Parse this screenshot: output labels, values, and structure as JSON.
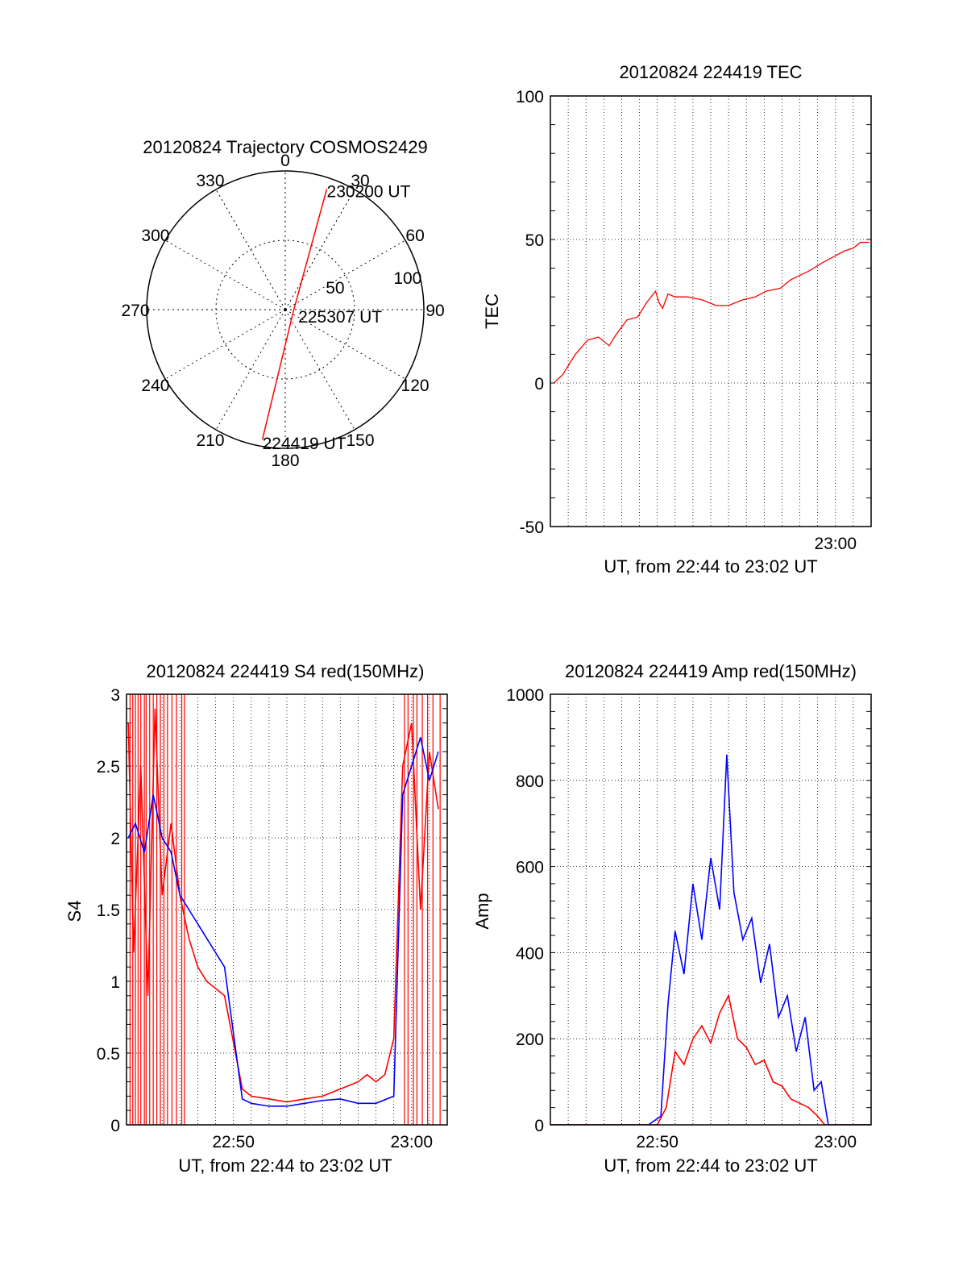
{
  "chart_data": [
    {
      "type": "polar",
      "title": "20120824 Trajectory COSMOS2429",
      "angle_labels": [
        "0",
        "30",
        "60",
        "90",
        "120",
        "150",
        "180",
        "210",
        "240",
        "270",
        "300",
        "330"
      ],
      "radial_labels": [
        "50",
        "100"
      ],
      "rlim": [
        0,
        100
      ],
      "series": [
        {
          "color": "#ff0000",
          "points": [
            {
              "az": 190,
              "r": 95,
              "label": "224419 UT"
            },
            {
              "az": 100,
              "r": 6,
              "label": "225307 UT"
            },
            {
              "az": 19,
              "r": 92,
              "label": "230200 UT"
            }
          ]
        }
      ]
    },
    {
      "type": "line",
      "title": "20120824 224419 TEC",
      "xlabel": "UT, from 22:44 to 23:02 UT",
      "ylabel": "TEC",
      "xlim": [
        0,
        18
      ],
      "ylim": [
        -50,
        100
      ],
      "yticks": [
        -50,
        0,
        50,
        100
      ],
      "xticks": [
        {
          "value": 16,
          "label": "23:00"
        }
      ],
      "grid": true,
      "series": [
        {
          "color": "#ff0000",
          "x": [
            0.2,
            0.7,
            1.4,
            2.1,
            2.7,
            3.3,
            3.7,
            4.3,
            4.9,
            5.4,
            5.9,
            6.1,
            6.3,
            6.6,
            7.0,
            7.7,
            8.5,
            9.3,
            10.0,
            10.8,
            11.5,
            12.1,
            12.9,
            13.5,
            14.5,
            15.3,
            15.9,
            16.5,
            17.0,
            17.4,
            17.9
          ],
          "y": [
            0,
            3,
            10,
            15,
            16,
            13,
            17,
            22,
            23,
            28,
            32,
            28,
            26,
            31,
            30,
            30,
            29,
            27,
            27,
            29,
            30,
            32,
            33,
            36,
            39,
            42,
            44,
            46,
            47,
            49,
            49
          ]
        }
      ]
    },
    {
      "type": "line",
      "title": "20120824 224419 S4 red(150MHz)",
      "xlabel": "UT, from 22:44 to 23:02 UT",
      "ylabel": "S4",
      "xlim": [
        0,
        18
      ],
      "ylim": [
        0,
        3
      ],
      "yticks": [
        0,
        0.5,
        1,
        1.5,
        2,
        2.5,
        3
      ],
      "xticks": [
        {
          "value": 6,
          "label": "22:50"
        },
        {
          "value": 16,
          "label": "23:00"
        }
      ],
      "grid": true,
      "series": [
        {
          "color": "#ff0000",
          "x": [
            0.1,
            0.4,
            0.8,
            1.2,
            1.6,
            2.0,
            2.5,
            3.0,
            3.5,
            4.0,
            4.5,
            5.0,
            5.5,
            6.5,
            7.0,
            8.0,
            9.0,
            10.0,
            11.0,
            12.0,
            13.0,
            13.5,
            14.0,
            14.5,
            15.0,
            15.5,
            16.0,
            16.5,
            17.0,
            17.5
          ],
          "y": [
            2.8,
            1.2,
            2.5,
            0.9,
            2.9,
            1.6,
            2.1,
            1.6,
            1.3,
            1.1,
            1.0,
            0.95,
            0.9,
            0.25,
            0.2,
            0.18,
            0.16,
            0.18,
            0.2,
            0.25,
            0.3,
            0.35,
            0.3,
            0.35,
            0.6,
            2.5,
            2.8,
            1.5,
            2.6,
            2.2
          ],
          "spikes": [
            0.2,
            0.35,
            0.5,
            0.65,
            0.8,
            1.0,
            1.1,
            1.3,
            1.5,
            1.7,
            1.9,
            2.1,
            2.3,
            2.55,
            2.8,
            3.1,
            3.25,
            15.6,
            15.8,
            16.1,
            16.3,
            16.6,
            16.9,
            17.2,
            17.6
          ]
        },
        {
          "color": "#0000ff",
          "x": [
            0.1,
            0.5,
            1.0,
            1.5,
            2.0,
            2.5,
            3.0,
            3.5,
            4.0,
            4.5,
            5.0,
            5.5,
            6.5,
            7.0,
            8.0,
            9.0,
            10.0,
            11.0,
            12.0,
            13.0,
            14.0,
            15.0,
            15.5,
            16.0,
            16.5,
            17.0,
            17.5
          ],
          "y": [
            2.0,
            2.1,
            1.9,
            2.3,
            2.0,
            1.9,
            1.6,
            1.5,
            1.4,
            1.3,
            1.2,
            1.1,
            0.18,
            0.15,
            0.13,
            0.13,
            0.15,
            0.17,
            0.18,
            0.15,
            0.15,
            0.2,
            2.3,
            2.5,
            2.7,
            2.4,
            2.6
          ]
        }
      ]
    },
    {
      "type": "line",
      "title": "20120824 224419 Amp red(150MHz)",
      "xlabel": "UT, from 22:44 to 23:02 UT",
      "ylabel": "Amp",
      "xlim": [
        0,
        18
      ],
      "ylim": [
        0,
        1000
      ],
      "yticks": [
        0,
        200,
        400,
        600,
        800,
        1000
      ],
      "xticks": [
        {
          "value": 6,
          "label": "22:50"
        },
        {
          "value": 16,
          "label": "23:00"
        }
      ],
      "grid": true,
      "series": [
        {
          "color": "#0000ff",
          "x": [
            0,
            5.5,
            6.2,
            6.6,
            7.0,
            7.5,
            8.0,
            8.5,
            9.0,
            9.5,
            9.9,
            10.3,
            10.8,
            11.3,
            11.8,
            12.3,
            12.8,
            13.3,
            13.8,
            14.3,
            14.8,
            15.2,
            15.6,
            18.0
          ],
          "y": [
            0,
            0,
            20,
            280,
            450,
            350,
            560,
            430,
            620,
            500,
            860,
            540,
            430,
            480,
            330,
            420,
            250,
            300,
            170,
            250,
            80,
            100,
            0,
            0
          ]
        },
        {
          "color": "#ff0000",
          "x": [
            0,
            6.0,
            6.5,
            7.0,
            7.5,
            8.0,
            8.5,
            9.0,
            9.5,
            10.0,
            10.5,
            11.0,
            11.5,
            12.0,
            12.5,
            13.0,
            13.5,
            14.0,
            14.5,
            15.0,
            15.4,
            18.0
          ],
          "y": [
            0,
            0,
            40,
            170,
            140,
            200,
            230,
            190,
            260,
            300,
            200,
            180,
            140,
            150,
            100,
            90,
            60,
            50,
            40,
            20,
            0,
            0
          ]
        }
      ]
    }
  ]
}
